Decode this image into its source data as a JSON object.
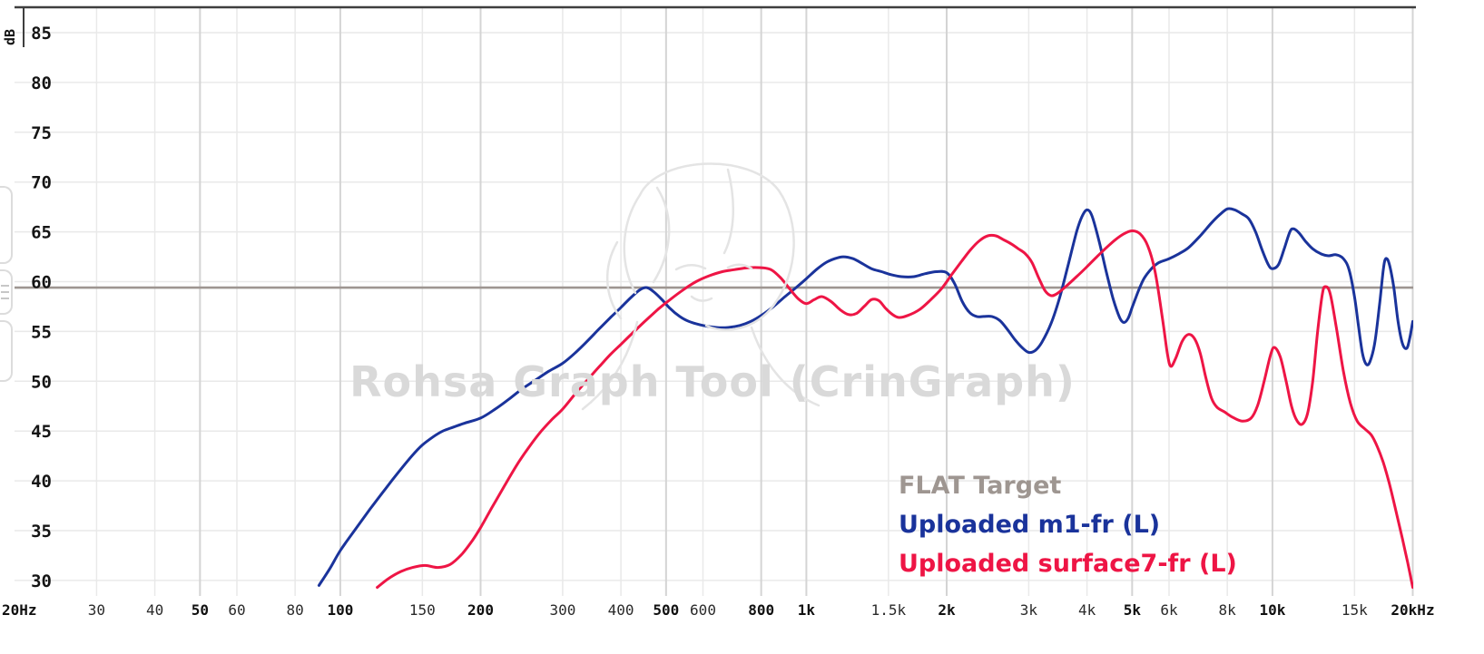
{
  "watermark": {
    "title": "Rohsa Graph Tool (CrinGraph)"
  },
  "chart_data": {
    "type": "line",
    "title": "",
    "grid": true,
    "legend_position": "bottom-right",
    "x_axis": {
      "scale": "log",
      "min": 20,
      "max": 20000,
      "unit": "Hz",
      "ticks": [
        {
          "f": 20,
          "label": "20Hz",
          "major": true
        },
        {
          "f": 30,
          "label": "30",
          "major": false
        },
        {
          "f": 40,
          "label": "40",
          "major": false
        },
        {
          "f": 50,
          "label": "50",
          "major": true
        },
        {
          "f": 60,
          "label": "60",
          "major": false
        },
        {
          "f": 80,
          "label": "80",
          "major": false
        },
        {
          "f": 100,
          "label": "100",
          "major": true
        },
        {
          "f": 150,
          "label": "150",
          "major": false
        },
        {
          "f": 200,
          "label": "200",
          "major": true
        },
        {
          "f": 300,
          "label": "300",
          "major": false
        },
        {
          "f": 400,
          "label": "400",
          "major": false
        },
        {
          "f": 500,
          "label": "500",
          "major": true
        },
        {
          "f": 600,
          "label": "600",
          "major": false
        },
        {
          "f": 800,
          "label": "800",
          "major": true
        },
        {
          "f": 1000,
          "label": "1k",
          "major": true
        },
        {
          "f": 1500,
          "label": "1.5k",
          "major": false
        },
        {
          "f": 2000,
          "label": "2k",
          "major": true
        },
        {
          "f": 3000,
          "label": "3k",
          "major": false
        },
        {
          "f": 4000,
          "label": "4k",
          "major": false
        },
        {
          "f": 5000,
          "label": "5k",
          "major": true
        },
        {
          "f": 6000,
          "label": "6k",
          "major": false
        },
        {
          "f": 8000,
          "label": "8k",
          "major": false
        },
        {
          "f": 10000,
          "label": "10k",
          "major": true
        },
        {
          "f": 15000,
          "label": "15k",
          "major": false
        },
        {
          "f": 20000,
          "label": "20kHz",
          "major": true
        }
      ]
    },
    "y_axis": {
      "label": "dB",
      "min": 30,
      "max": 85,
      "step": 5,
      "ticks": [
        85,
        80,
        75,
        70,
        65,
        60,
        55,
        50,
        45,
        40,
        35,
        30
      ]
    },
    "series": [
      {
        "name": "FLAT Target",
        "color": "#9e9691",
        "flat": true,
        "level": 59.4,
        "points": [
          [
            20,
            59.4
          ],
          [
            20000,
            59.4
          ]
        ]
      },
      {
        "name": "Uploaded m1-fr (L)",
        "color": "#1a339b",
        "flat": false,
        "points": [
          [
            90,
            29.5
          ],
          [
            95,
            31.2
          ],
          [
            100,
            33
          ],
          [
            108,
            35.2
          ],
          [
            116,
            37.2
          ],
          [
            125,
            39.2
          ],
          [
            134,
            41
          ],
          [
            143,
            42.6
          ],
          [
            150,
            43.6
          ],
          [
            158,
            44.4
          ],
          [
            166,
            45
          ],
          [
            175,
            45.4
          ],
          [
            185,
            45.8
          ],
          [
            200,
            46.3
          ],
          [
            215,
            47.2
          ],
          [
            230,
            48.2
          ],
          [
            245,
            49.2
          ],
          [
            260,
            50
          ],
          [
            280,
            51
          ],
          [
            300,
            51.8
          ],
          [
            320,
            52.9
          ],
          [
            340,
            54.1
          ],
          [
            360,
            55.3
          ],
          [
            380,
            56.4
          ],
          [
            400,
            57.4
          ],
          [
            420,
            58.4
          ],
          [
            440,
            59.2
          ],
          [
            455,
            59.4
          ],
          [
            470,
            59
          ],
          [
            490,
            58.2
          ],
          [
            510,
            57.3
          ],
          [
            535,
            56.5
          ],
          [
            560,
            56
          ],
          [
            600,
            55.6
          ],
          [
            640,
            55.4
          ],
          [
            680,
            55.4
          ],
          [
            720,
            55.6
          ],
          [
            760,
            56
          ],
          [
            800,
            56.6
          ],
          [
            850,
            57.5
          ],
          [
            900,
            58.5
          ],
          [
            950,
            59.4
          ],
          [
            1000,
            60.3
          ],
          [
            1050,
            61.2
          ],
          [
            1100,
            61.9
          ],
          [
            1150,
            62.3
          ],
          [
            1200,
            62.5
          ],
          [
            1260,
            62.3
          ],
          [
            1320,
            61.8
          ],
          [
            1380,
            61.3
          ],
          [
            1450,
            61
          ],
          [
            1520,
            60.7
          ],
          [
            1600,
            60.5
          ],
          [
            1700,
            60.5
          ],
          [
            1800,
            60.8
          ],
          [
            1900,
            61
          ],
          [
            2000,
            60.9
          ],
          [
            2080,
            59.8
          ],
          [
            2160,
            58
          ],
          [
            2240,
            56.9
          ],
          [
            2320,
            56.5
          ],
          [
            2400,
            56.5
          ],
          [
            2500,
            56.5
          ],
          [
            2600,
            56.1
          ],
          [
            2700,
            55.2
          ],
          [
            2800,
            54.2
          ],
          [
            2900,
            53.4
          ],
          [
            3000,
            52.9
          ],
          [
            3100,
            53.1
          ],
          [
            3200,
            53.9
          ],
          [
            3350,
            55.8
          ],
          [
            3500,
            58.5
          ],
          [
            3650,
            61.8
          ],
          [
            3800,
            65
          ],
          [
            3900,
            66.5
          ],
          [
            4000,
            67.2
          ],
          [
            4100,
            66.6
          ],
          [
            4250,
            64
          ],
          [
            4400,
            61
          ],
          [
            4550,
            58.3
          ],
          [
            4700,
            56.4
          ],
          [
            4800,
            55.9
          ],
          [
            4900,
            56.3
          ],
          [
            5000,
            57.4
          ],
          [
            5150,
            59
          ],
          [
            5300,
            60.3
          ],
          [
            5500,
            61.3
          ],
          [
            5700,
            61.9
          ],
          [
            6000,
            62.3
          ],
          [
            6300,
            62.8
          ],
          [
            6600,
            63.4
          ],
          [
            7000,
            64.6
          ],
          [
            7400,
            65.9
          ],
          [
            7700,
            66.7
          ],
          [
            8000,
            67.3
          ],
          [
            8300,
            67.2
          ],
          [
            8600,
            66.8
          ],
          [
            8900,
            66.3
          ],
          [
            9200,
            65
          ],
          [
            9500,
            63.2
          ],
          [
            9800,
            61.7
          ],
          [
            10000,
            61.3
          ],
          [
            10300,
            61.7
          ],
          [
            10600,
            63.3
          ],
          [
            10900,
            65
          ],
          [
            11100,
            65.3
          ],
          [
            11400,
            64.9
          ],
          [
            11800,
            64
          ],
          [
            12200,
            63.3
          ],
          [
            12700,
            62.8
          ],
          [
            13200,
            62.6
          ],
          [
            13700,
            62.7
          ],
          [
            14200,
            62.3
          ],
          [
            14600,
            61.2
          ],
          [
            15000,
            58.5
          ],
          [
            15300,
            55.5
          ],
          [
            15600,
            52.8
          ],
          [
            15900,
            51.7
          ],
          [
            16200,
            52
          ],
          [
            16600,
            54
          ],
          [
            17000,
            58
          ],
          [
            17300,
            61.3
          ],
          [
            17500,
            62.3
          ],
          [
            17800,
            61.8
          ],
          [
            18200,
            59.5
          ],
          [
            18600,
            56
          ],
          [
            19000,
            53.8
          ],
          [
            19400,
            53.3
          ],
          [
            19700,
            54.3
          ],
          [
            20000,
            56
          ]
        ]
      },
      {
        "name": "Uploaded surface7-fr (L)",
        "color": "#ee1545",
        "flat": false,
        "points": [
          [
            120,
            29.3
          ],
          [
            127,
            30.2
          ],
          [
            135,
            30.9
          ],
          [
            143,
            31.3
          ],
          [
            152,
            31.5
          ],
          [
            162,
            31.3
          ],
          [
            172,
            31.6
          ],
          [
            182,
            32.6
          ],
          [
            192,
            34
          ],
          [
            200,
            35.3
          ],
          [
            212,
            37.4
          ],
          [
            225,
            39.5
          ],
          [
            240,
            41.7
          ],
          [
            255,
            43.5
          ],
          [
            270,
            45
          ],
          [
            285,
            46.2
          ],
          [
            300,
            47.2
          ],
          [
            320,
            48.8
          ],
          [
            340,
            50.2
          ],
          [
            360,
            51.5
          ],
          [
            380,
            52.7
          ],
          [
            400,
            53.7
          ],
          [
            425,
            54.9
          ],
          [
            450,
            56
          ],
          [
            480,
            57.2
          ],
          [
            510,
            58.2
          ],
          [
            545,
            59.2
          ],
          [
            580,
            60
          ],
          [
            620,
            60.6
          ],
          [
            660,
            61
          ],
          [
            700,
            61.2
          ],
          [
            750,
            61.4
          ],
          [
            800,
            61.4
          ],
          [
            840,
            61.2
          ],
          [
            880,
            60.4
          ],
          [
            920,
            59.3
          ],
          [
            960,
            58.3
          ],
          [
            1000,
            57.8
          ],
          [
            1040,
            58.2
          ],
          [
            1080,
            58.5
          ],
          [
            1130,
            58
          ],
          [
            1180,
            57.2
          ],
          [
            1230,
            56.7
          ],
          [
            1280,
            56.8
          ],
          [
            1330,
            57.5
          ],
          [
            1380,
            58.2
          ],
          [
            1430,
            58.1
          ],
          [
            1480,
            57.3
          ],
          [
            1530,
            56.7
          ],
          [
            1580,
            56.4
          ],
          [
            1650,
            56.6
          ],
          [
            1750,
            57.2
          ],
          [
            1850,
            58.2
          ],
          [
            1950,
            59.3
          ],
          [
            2050,
            60.7
          ],
          [
            2150,
            62
          ],
          [
            2250,
            63.2
          ],
          [
            2350,
            64.1
          ],
          [
            2450,
            64.6
          ],
          [
            2550,
            64.6
          ],
          [
            2650,
            64.2
          ],
          [
            2750,
            63.8
          ],
          [
            2850,
            63.3
          ],
          [
            2950,
            62.8
          ],
          [
            3050,
            61.9
          ],
          [
            3150,
            60.4
          ],
          [
            3250,
            59.1
          ],
          [
            3350,
            58.6
          ],
          [
            3450,
            58.8
          ],
          [
            3600,
            59.5
          ],
          [
            3800,
            60.5
          ],
          [
            4000,
            61.5
          ],
          [
            4200,
            62.5
          ],
          [
            4400,
            63.4
          ],
          [
            4600,
            64.2
          ],
          [
            4800,
            64.8
          ],
          [
            5000,
            65.1
          ],
          [
            5200,
            64.8
          ],
          [
            5400,
            63.6
          ],
          [
            5600,
            61
          ],
          [
            5800,
            56.5
          ],
          [
            5950,
            52.8
          ],
          [
            6050,
            51.5
          ],
          [
            6200,
            52.3
          ],
          [
            6400,
            54
          ],
          [
            6600,
            54.7
          ],
          [
            6800,
            54.3
          ],
          [
            7000,
            52.8
          ],
          [
            7200,
            50.3
          ],
          [
            7400,
            48.3
          ],
          [
            7600,
            47.4
          ],
          [
            7900,
            46.9
          ],
          [
            8200,
            46.4
          ],
          [
            8600,
            46
          ],
          [
            9000,
            46.3
          ],
          [
            9300,
            47.6
          ],
          [
            9600,
            50
          ],
          [
            9900,
            52.6
          ],
          [
            10100,
            53.4
          ],
          [
            10400,
            52.4
          ],
          [
            10700,
            50
          ],
          [
            11000,
            47.4
          ],
          [
            11300,
            46
          ],
          [
            11600,
            45.7
          ],
          [
            11900,
            46.8
          ],
          [
            12200,
            50
          ],
          [
            12500,
            55
          ],
          [
            12800,
            58.8
          ],
          [
            13000,
            59.5
          ],
          [
            13300,
            58.8
          ],
          [
            13700,
            55.5
          ],
          [
            14200,
            51
          ],
          [
            14700,
            47.8
          ],
          [
            15200,
            46
          ],
          [
            15800,
            45.2
          ],
          [
            16300,
            44.6
          ],
          [
            16800,
            43.4
          ],
          [
            17300,
            41.8
          ],
          [
            17800,
            39.8
          ],
          [
            18400,
            37
          ],
          [
            19000,
            34.2
          ],
          [
            19500,
            31.8
          ],
          [
            20000,
            29.3
          ]
        ]
      }
    ]
  },
  "style": {
    "grid_minor": "#e9e9e9",
    "grid_major": "#d4d4d4",
    "axis_line": "#3e3e3e",
    "watermark_color": "#d9d9d9"
  }
}
